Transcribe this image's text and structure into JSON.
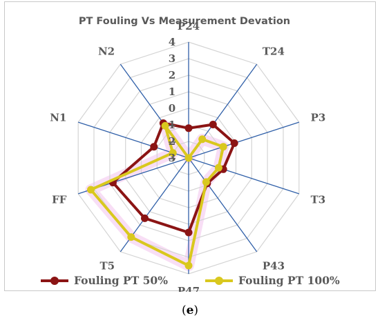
{
  "chart_data": {
    "type": "radar",
    "title": "PT Fouling Vs Measurement  Devation",
    "categories": [
      "P24",
      "T24",
      "P3",
      "T3",
      "P43",
      "P47",
      "T5",
      "FF",
      "N1",
      "N2"
    ],
    "radial_ticks": [
      "4",
      "3",
      "2",
      "1",
      "0",
      "-1",
      "-2",
      "-3"
    ],
    "rlim": [
      -3,
      4
    ],
    "grid": true,
    "legend_position": "bottom",
    "series": [
      {
        "name": "Fouling PT  50%",
        "color": "#8b1414",
        "values": [
          -1.2,
          -0.5,
          -0.1,
          -0.8,
          -1.1,
          1.5,
          1.5,
          1.8,
          -0.8,
          -0.4
        ]
      },
      {
        "name": "Fouling PT  100%",
        "color": "#d9c81e",
        "values": [
          -3.0,
          -1.6,
          -0.8,
          -1.1,
          -1.2,
          3.5,
          2.9,
          3.2,
          -2.0,
          -0.6
        ]
      }
    ]
  },
  "caption": {
    "text": "(e)",
    "letter": "e"
  }
}
